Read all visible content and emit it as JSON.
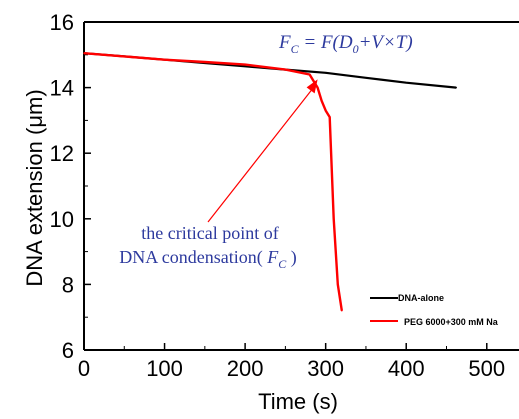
{
  "chart_data": {
    "type": "line",
    "title": "",
    "xlabel": "Time (s)",
    "ylabel": "DNA extension (μm)",
    "xlim": [
      0,
      540
    ],
    "ylim": [
      6,
      16
    ],
    "xticks": [
      "0",
      "100",
      "200",
      "300",
      "400",
      "500"
    ],
    "yticks": [
      "6",
      "8",
      "10",
      "12",
      "14",
      "16"
    ],
    "grid": false,
    "legend_position": "bottom-right",
    "series": [
      {
        "name": "DNA-alone",
        "color": "#000000",
        "x": [
          0,
          50,
          100,
          150,
          200,
          250,
          300,
          350,
          400,
          462
        ],
        "y": [
          15.05,
          14.95,
          14.85,
          14.75,
          14.65,
          14.55,
          14.45,
          14.3,
          14.15,
          14.0
        ]
      },
      {
        "name": "PEG 6000+300 mM Na",
        "color": "#ff0000",
        "x": [
          0,
          50,
          100,
          150,
          200,
          250,
          280,
          290,
          295,
          300,
          305,
          310,
          315,
          320
        ],
        "y": [
          15.05,
          14.95,
          14.85,
          14.78,
          14.7,
          14.55,
          14.4,
          14.0,
          13.6,
          13.3,
          13.1,
          10.0,
          8.0,
          7.2
        ]
      }
    ],
    "annotations": {
      "formula": "F_C = F(D_0+V×T)",
      "critical_point_line1": "the critical point of",
      "critical_point_line2": "DNA condensation( F_C )",
      "arrow_target": {
        "x": 290,
        "y": 14.25
      }
    }
  }
}
